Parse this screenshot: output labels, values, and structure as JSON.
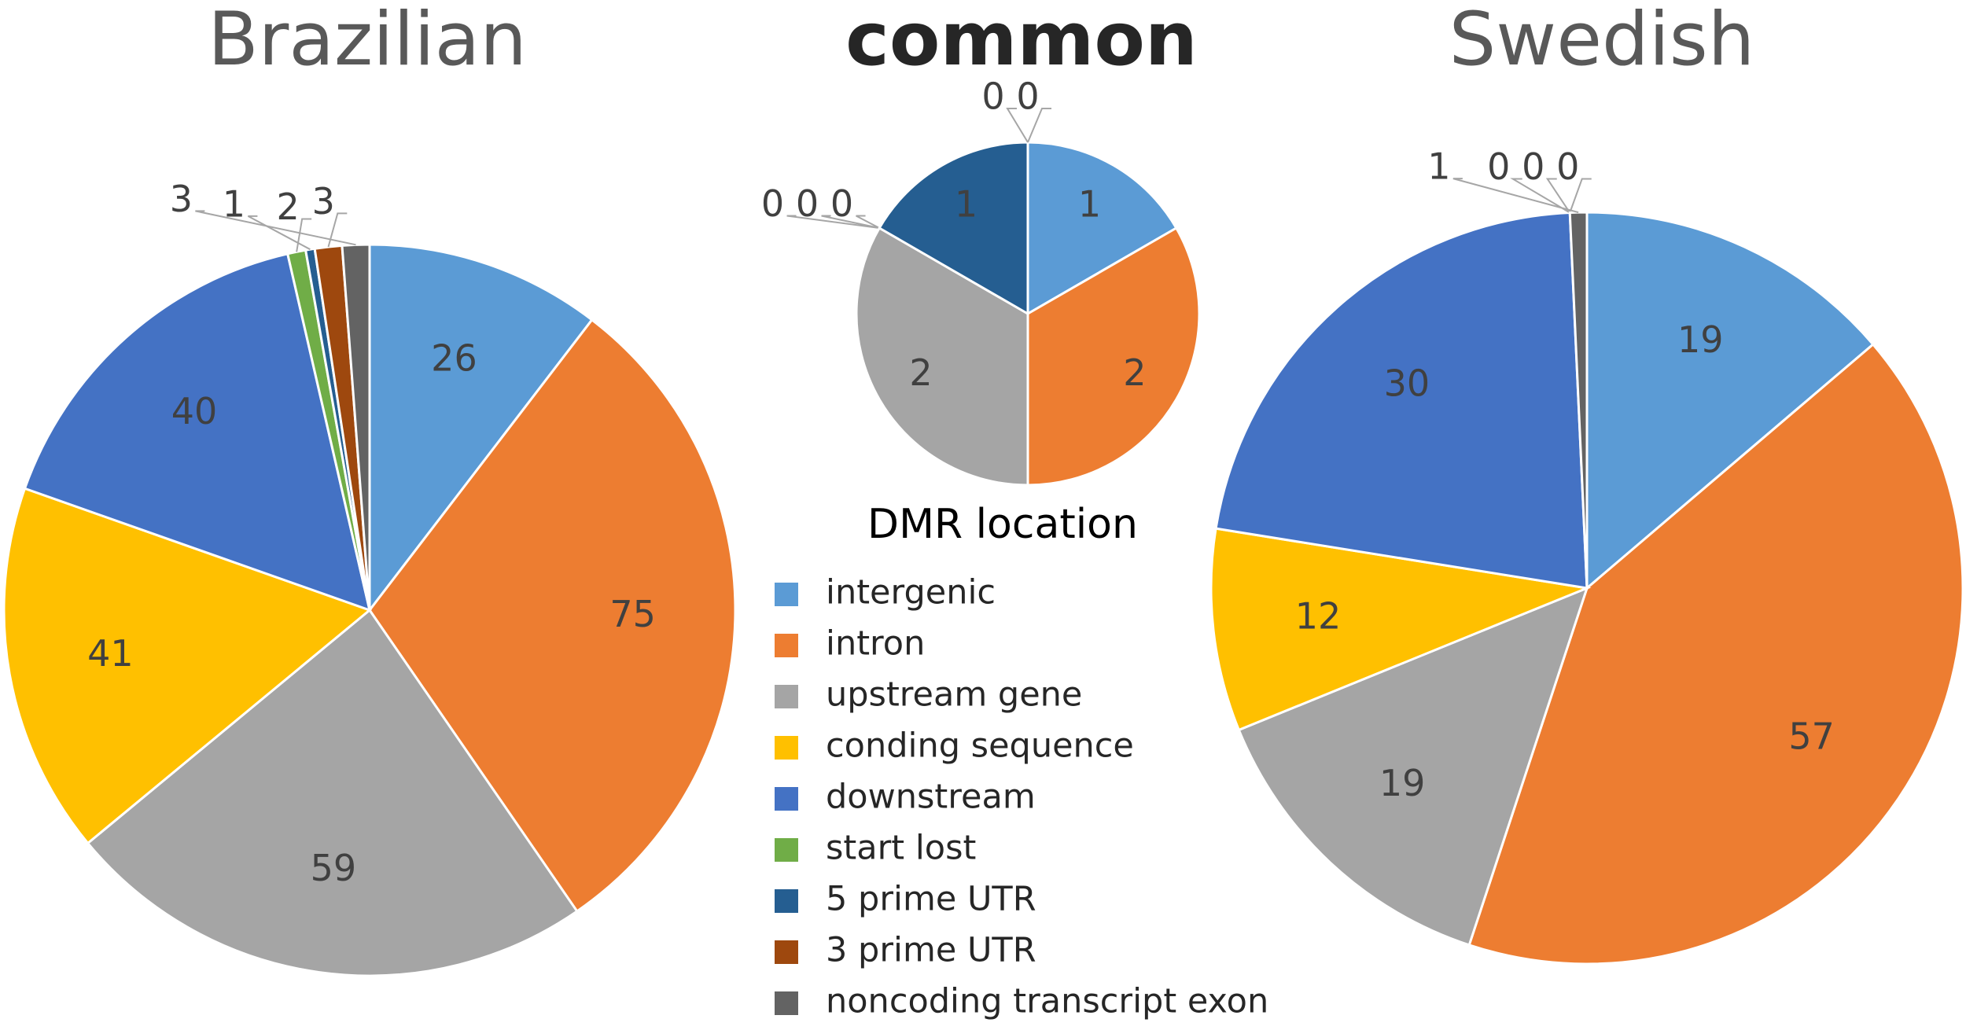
{
  "legend": {
    "title": "DMR location",
    "categories": [
      "intergenic",
      "intron",
      "upstream gene",
      "conding sequence",
      "downstream",
      "start lost",
      "5 prime UTR",
      "3 prime UTR",
      "noncoding transcript exon"
    ],
    "colors": [
      "#5b9bd5",
      "#ed7d31",
      "#a5a5a5",
      "#ffc000",
      "#4472c4",
      "#70ad47",
      "#255e91",
      "#9e480e",
      "#636363"
    ]
  },
  "chart_data": [
    {
      "type": "pie",
      "title": "Brazilian",
      "values": [
        26,
        75,
        59,
        41,
        40,
        2,
        1,
        3,
        3
      ]
    },
    {
      "type": "pie",
      "title": "common",
      "values": [
        1,
        2,
        2,
        0,
        0,
        0,
        1,
        0,
        0
      ]
    },
    {
      "type": "pie",
      "title": "Swedish",
      "values": [
        19,
        57,
        19,
        12,
        30,
        0,
        0,
        0,
        1
      ]
    }
  ]
}
